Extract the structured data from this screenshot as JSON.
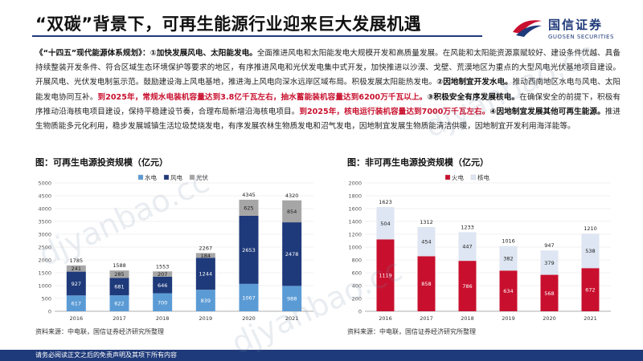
{
  "title": "“双碳”背景下，可再生能源行业迎来巨大发展机遇",
  "logo": {
    "cn": "国信证券",
    "en": "GUOSEN SECURITIES"
  },
  "paragraph": [
    {
      "t": "《“十四五”现代能源体系规划》：",
      "s": "b"
    },
    {
      "t": "①加快发展风电、太阳能发电。",
      "s": "b"
    },
    {
      "t": "全面推进风电和太阳能发电大规模开发和高质量发展。在风能和太阳能资源禀赋较好、建设条件优越、具备持续整装开发条件、符合区域生态环境保护等要求的地区，有序推进风电和光伏发电集中式开发，加快推进以沙漠、戈壁、荒漠地区为重点的大型风电光伏基地项目建设。开展风电、光伏发电制氢示范。鼓励建设海上风电基地，推进海上风电向深水远岸区域布局。积极发展太阳能热发电。",
      "s": ""
    },
    {
      "t": "②因地制宜开发水电。",
      "s": "b"
    },
    {
      "t": "推动西南地区水电与风电、太阳能发电协同互补。",
      "s": ""
    },
    {
      "t": "到2025年，常规水电装机容量达到3.8亿千瓦左右，抽水蓄能装机容量达到6200万千瓦以上。",
      "s": "red"
    },
    {
      "t": "③积极安全有序发展核电。",
      "s": "b"
    },
    {
      "t": "在确保安全的前提下，积极有序推动沿海核电项目建设，保持平稳建设节奏，合理布局新增沿海核电项目。",
      "s": ""
    },
    {
      "t": "到2025年，核电运行装机容量达到7000万千瓦左右。",
      "s": "red"
    },
    {
      "t": "④因地制宜发展其他可再生能源。",
      "s": "b"
    },
    {
      "t": "推进生物质能多元化利用，稳步发展城镇生活垃圾焚烧发电，有序发展农林生物质发电和沼气发电，因地制宜发展生物质能清洁供暖，因地制宜开发利用海洋能等。",
      "s": ""
    }
  ],
  "chart_left": {
    "title": "图：可再生电源投资规模（亿元）",
    "source": "资料来源：中电联，国信证券经济研究所整理",
    "chart_data": {
      "type": "bar",
      "stacked": true,
      "categories": [
        "2016",
        "2017",
        "2018",
        "2019",
        "2020",
        "2021"
      ],
      "series": [
        {
          "name": "水电",
          "color": "#5b9bd5",
          "values": [
            617,
            622,
            700,
            839,
            1067,
            988
          ]
        },
        {
          "name": "风电",
          "color": "#1f3a7a",
          "values": [
            927,
            681,
            646,
            1244,
            2653,
            2478
          ]
        },
        {
          "name": "光伏",
          "color": "#a6a6a6",
          "values": [
            241,
            285,
            207,
            184,
            625,
            854
          ]
        }
      ],
      "totals": [
        1785,
        1588,
        1553,
        2267,
        4345,
        4320
      ],
      "ylim": [
        0,
        5000
      ],
      "yticks": [
        0,
        500,
        1000,
        1500,
        2000,
        2500,
        3000,
        3500,
        4000,
        4500,
        5000
      ],
      "legend": "top-center",
      "grid": true
    }
  },
  "chart_right": {
    "title": "图：非可再生电源投资规模（亿元）",
    "source": "资料来源：中电联，国信证券经济研究所整理",
    "chart_data": {
      "type": "bar",
      "stacked": true,
      "categories": [
        "2016",
        "2017",
        "2018",
        "2019",
        "2020",
        "2021"
      ],
      "series": [
        {
          "name": "火电",
          "color": "#c8102e",
          "values": [
            1119,
            858,
            786,
            634,
            568,
            672
          ]
        },
        {
          "name": "核电",
          "color": "#dde6f2",
          "values": [
            504,
            454,
            447,
            382,
            379,
            538
          ]
        }
      ],
      "totals": [
        1623,
        1312,
        1233,
        1016,
        947,
        1210
      ],
      "ylim": [
        0,
        2000
      ],
      "yticks": [
        0,
        200,
        400,
        600,
        800,
        1000,
        1200,
        1400,
        1600,
        1800,
        2000
      ],
      "legend": "top-center",
      "grid": true
    }
  },
  "footer": "请务必阅读正文之后的免责声明及其项下所有内容",
  "watermark": "djyanbao.cc"
}
